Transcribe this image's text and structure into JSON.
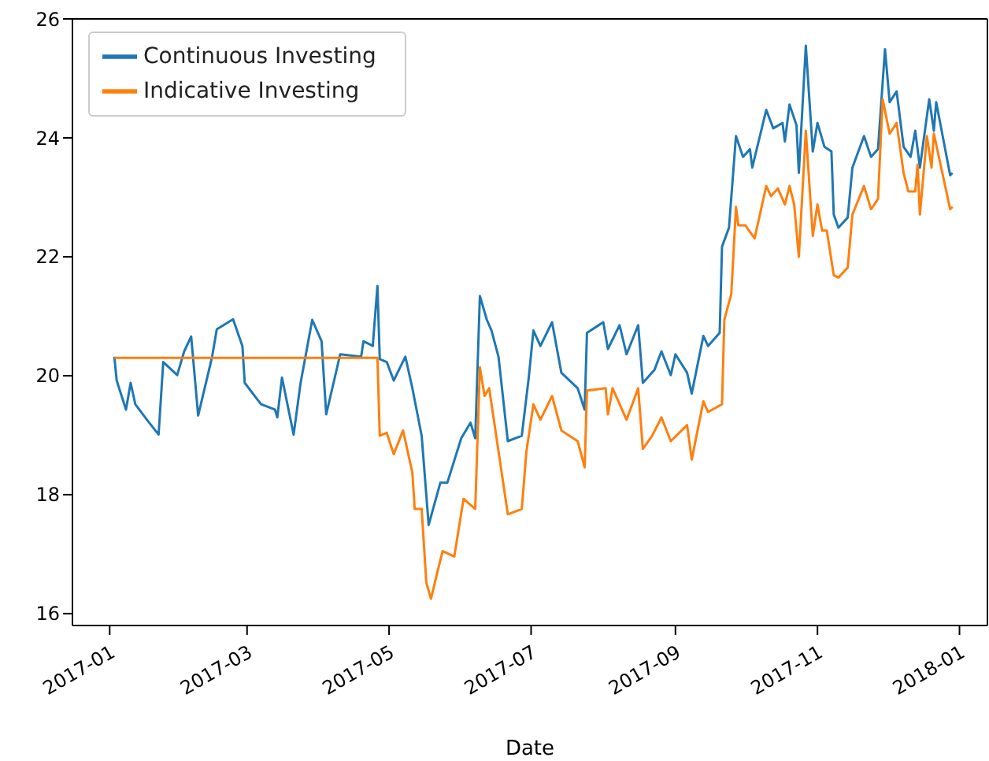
{
  "chart_data": {
    "type": "line",
    "xlabel": "Date",
    "legend": "top left",
    "grid": false,
    "marker": "none",
    "line_style": "solid",
    "xlim": [
      "2016-12-16",
      "2018-01-13"
    ],
    "xticks": [
      "2017-01",
      "2017-03",
      "2017-05",
      "2017-07",
      "2017-09",
      "2017-11",
      "2018-01"
    ],
    "ylim": [
      15.8,
      26
    ],
    "yticks": [
      16,
      18,
      20,
      22,
      24,
      26
    ],
    "series": [
      {
        "name": "Continuous Investing",
        "color": "#1f77b4",
        "x": [
          "2017-01-03",
          "2017-01-04",
          "2017-01-08",
          "2017-01-10",
          "2017-01-12",
          "2017-01-17",
          "2017-01-22",
          "2017-01-24",
          "2017-01-30",
          "2017-02-02",
          "2017-02-05",
          "2017-02-08",
          "2017-02-14",
          "2017-02-16",
          "2017-02-23",
          "2017-02-27",
          "2017-02-28",
          "2017-03-07",
          "2017-03-13",
          "2017-03-14",
          "2017-03-16",
          "2017-03-21",
          "2017-03-24",
          "2017-03-29",
          "2017-04-02",
          "2017-04-04",
          "2017-04-10",
          "2017-04-19",
          "2017-04-20",
          "2017-04-24",
          "2017-04-26",
          "2017-04-27",
          "2017-04-30",
          "2017-05-03",
          "2017-05-08",
          "2017-05-11",
          "2017-05-15",
          "2017-05-18",
          "2017-05-23",
          "2017-05-26",
          "2017-06-01",
          "2017-06-05",
          "2017-06-07",
          "2017-06-09",
          "2017-06-12",
          "2017-06-14",
          "2017-06-17",
          "2017-06-21",
          "2017-06-27",
          "2017-06-30",
          "2017-07-02",
          "2017-07-05",
          "2017-07-10",
          "2017-07-14",
          "2017-07-21",
          "2017-07-24",
          "2017-07-25",
          "2017-08-01",
          "2017-08-03",
          "2017-08-08",
          "2017-08-11",
          "2017-08-16",
          "2017-08-18",
          "2017-08-23",
          "2017-08-26",
          "2017-08-30",
          "2017-09-01",
          "2017-09-06",
          "2017-09-08",
          "2017-09-13",
          "2017-09-15",
          "2017-09-20",
          "2017-09-21",
          "2017-09-24",
          "2017-09-27",
          "2017-09-30",
          "2017-10-03",
          "2017-10-04",
          "2017-10-10",
          "2017-10-13",
          "2017-10-17",
          "2017-10-18",
          "2017-10-20",
          "2017-10-23",
          "2017-10-24",
          "2017-10-27",
          "2017-10-30",
          "2017-11-01",
          "2017-11-04",
          "2017-11-07",
          "2017-11-08",
          "2017-11-10",
          "2017-11-14",
          "2017-11-16",
          "2017-11-21",
          "2017-11-24",
          "2017-11-27",
          "2017-11-30",
          "2017-12-02",
          "2017-12-05",
          "2017-12-08",
          "2017-12-11",
          "2017-12-13",
          "2017-12-15",
          "2017-12-19",
          "2017-12-21",
          "2017-12-22",
          "2017-12-28",
          "2017-12-29"
        ],
        "values": [
          20.32,
          19.92,
          19.43,
          19.88,
          19.52,
          19.26,
          19.01,
          20.23,
          20.01,
          20.41,
          20.66,
          19.33,
          20.32,
          20.78,
          20.95,
          20.5,
          19.88,
          19.52,
          19.43,
          19.3,
          19.97,
          19.01,
          19.88,
          20.94,
          20.58,
          19.35,
          20.36,
          20.32,
          20.58,
          20.5,
          21.51,
          20.28,
          20.23,
          19.92,
          20.32,
          19.79,
          18.99,
          17.49,
          18.2,
          18.2,
          18.95,
          19.21,
          18.95,
          21.34,
          20.94,
          20.76,
          20.32,
          18.9,
          18.99,
          19.97,
          20.76,
          20.5,
          20.9,
          20.05,
          19.79,
          19.43,
          20.72,
          20.9,
          20.45,
          20.85,
          20.36,
          20.85,
          19.88,
          20.1,
          20.41,
          20.01,
          20.36,
          20.05,
          19.7,
          20.67,
          20.5,
          20.72,
          22.17,
          22.49,
          24.03,
          23.68,
          23.81,
          23.5,
          24.47,
          24.16,
          24.25,
          23.94,
          24.56,
          24.21,
          23.41,
          25.55,
          23.77,
          24.25,
          23.85,
          23.77,
          22.71,
          22.49,
          22.66,
          23.5,
          24.03,
          23.68,
          23.81,
          25.49,
          24.6,
          24.78,
          23.85,
          23.68,
          24.12,
          23.5,
          24.65,
          24.12,
          24.6,
          23.37,
          23.41
        ]
      },
      {
        "name": "Indicative Investing",
        "color": "#ff7f0e",
        "x": [
          "2017-01-03",
          "2017-04-26",
          "2017-04-27",
          "2017-04-30",
          "2017-05-03",
          "2017-05-07",
          "2017-05-11",
          "2017-05-12",
          "2017-05-15",
          "2017-05-17",
          "2017-05-19",
          "2017-05-22",
          "2017-05-24",
          "2017-05-29",
          "2017-06-02",
          "2017-06-07",
          "2017-06-09",
          "2017-06-11",
          "2017-06-13",
          "2017-06-17",
          "2017-06-21",
          "2017-06-27",
          "2017-06-29",
          "2017-07-02",
          "2017-07-05",
          "2017-07-10",
          "2017-07-14",
          "2017-07-21",
          "2017-07-24",
          "2017-07-25",
          "2017-08-02",
          "2017-08-03",
          "2017-08-05",
          "2017-08-11",
          "2017-08-16",
          "2017-08-18",
          "2017-08-22",
          "2017-08-26",
          "2017-08-30",
          "2017-09-06",
          "2017-09-08",
          "2017-09-13",
          "2017-09-15",
          "2017-09-21",
          "2017-09-22",
          "2017-09-25",
          "2017-09-27",
          "2017-09-28",
          "2017-10-01",
          "2017-10-05",
          "2017-10-10",
          "2017-10-12",
          "2017-10-15",
          "2017-10-18",
          "2017-10-20",
          "2017-10-22",
          "2017-10-24",
          "2017-10-27",
          "2017-10-30",
          "2017-11-01",
          "2017-11-03",
          "2017-11-05",
          "2017-11-08",
          "2017-11-10",
          "2017-11-14",
          "2017-11-16",
          "2017-11-21",
          "2017-11-24",
          "2017-11-27",
          "2017-11-29",
          "2017-12-02",
          "2017-12-05",
          "2017-12-08",
          "2017-12-10",
          "2017-12-13",
          "2017-12-14",
          "2017-12-15",
          "2017-12-18",
          "2017-12-20",
          "2017-12-21",
          "2017-12-28",
          "2017-12-29"
        ],
        "values": [
          20.3,
          20.3,
          18.99,
          19.04,
          18.68,
          19.08,
          18.37,
          17.76,
          17.76,
          16.52,
          16.25,
          16.74,
          17.05,
          16.96,
          17.93,
          17.76,
          20.14,
          19.66,
          19.79,
          18.73,
          17.67,
          17.76,
          18.73,
          19.52,
          19.26,
          19.66,
          19.08,
          18.9,
          18.46,
          19.75,
          19.79,
          19.35,
          19.79,
          19.26,
          19.79,
          18.77,
          18.99,
          19.3,
          18.9,
          19.17,
          18.59,
          19.57,
          19.39,
          19.52,
          20.94,
          21.38,
          22.84,
          22.53,
          22.53,
          22.31,
          23.19,
          23.02,
          23.15,
          22.88,
          23.19,
          22.88,
          22.0,
          24.12,
          22.35,
          22.88,
          22.44,
          22.44,
          21.69,
          21.65,
          21.82,
          22.71,
          23.19,
          22.8,
          22.97,
          24.65,
          24.07,
          24.25,
          23.41,
          23.1,
          23.1,
          23.55,
          22.71,
          24.03,
          23.5,
          24.07,
          22.8,
          22.84
        ]
      }
    ]
  }
}
